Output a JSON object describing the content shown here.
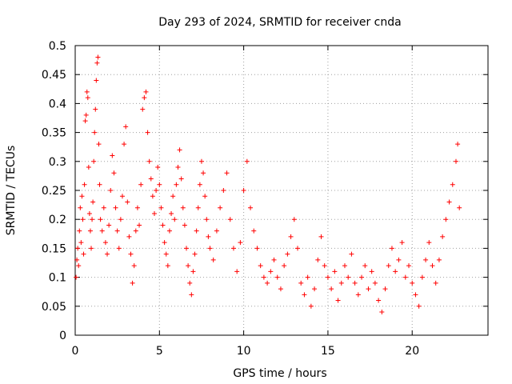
{
  "chart_data": {
    "type": "scatter",
    "title": "Day 293 of 2024, SRMTID for receiver cnda",
    "xlabel": "GPS time / hours",
    "ylabel": "SRMTID / TECUs",
    "xlim": [
      0,
      24.5
    ],
    "ylim": [
      0,
      0.5
    ],
    "x_ticks": [
      0,
      5,
      10,
      15,
      20
    ],
    "x_tick_labels": [
      "0",
      "5",
      "10",
      "15",
      "20"
    ],
    "y_ticks": [
      0,
      0.05,
      0.1,
      0.15,
      0.2,
      0.25,
      0.3,
      0.35,
      0.4,
      0.45,
      0.5
    ],
    "y_tick_labels": [
      "0",
      "0.05",
      "0.1",
      "0.15",
      "0.2",
      "0.25",
      "0.3",
      "0.35",
      "0.4",
      "0.45",
      "0.5"
    ],
    "grid": true,
    "marker": "plus",
    "color": "#ff0000",
    "series": [
      {
        "name": "SRMTID",
        "points": [
          [
            0.05,
            0.1
          ],
          [
            0.1,
            0.13
          ],
          [
            0.15,
            0.15
          ],
          [
            0.2,
            0.12
          ],
          [
            0.25,
            0.18
          ],
          [
            0.3,
            0.22
          ],
          [
            0.35,
            0.16
          ],
          [
            0.4,
            0.24
          ],
          [
            0.45,
            0.2
          ],
          [
            0.5,
            0.14
          ],
          [
            0.55,
            0.26
          ],
          [
            0.6,
            0.37
          ],
          [
            0.65,
            0.38
          ],
          [
            0.7,
            0.42
          ],
          [
            0.75,
            0.41
          ],
          [
            0.8,
            0.29
          ],
          [
            0.85,
            0.21
          ],
          [
            0.9,
            0.18
          ],
          [
            0.95,
            0.15
          ],
          [
            1.0,
            0.2
          ],
          [
            1.05,
            0.23
          ],
          [
            1.1,
            0.3
          ],
          [
            1.15,
            0.35
          ],
          [
            1.2,
            0.39
          ],
          [
            1.25,
            0.44
          ],
          [
            1.3,
            0.47
          ],
          [
            1.35,
            0.48
          ],
          [
            1.4,
            0.33
          ],
          [
            1.45,
            0.26
          ],
          [
            1.5,
            0.2
          ],
          [
            1.6,
            0.18
          ],
          [
            1.7,
            0.22
          ],
          [
            1.8,
            0.16
          ],
          [
            1.9,
            0.14
          ],
          [
            2.0,
            0.19
          ],
          [
            2.1,
            0.25
          ],
          [
            2.2,
            0.31
          ],
          [
            2.3,
            0.28
          ],
          [
            2.4,
            0.22
          ],
          [
            2.5,
            0.18
          ],
          [
            2.6,
            0.15
          ],
          [
            2.7,
            0.2
          ],
          [
            2.8,
            0.24
          ],
          [
            2.9,
            0.33
          ],
          [
            3.0,
            0.36
          ],
          [
            3.1,
            0.23
          ],
          [
            3.2,
            0.17
          ],
          [
            3.3,
            0.14
          ],
          [
            3.4,
            0.09
          ],
          [
            3.5,
            0.12
          ],
          [
            3.6,
            0.18
          ],
          [
            3.7,
            0.22
          ],
          [
            3.8,
            0.19
          ],
          [
            3.9,
            0.26
          ],
          [
            4.0,
            0.39
          ],
          [
            4.1,
            0.41
          ],
          [
            4.2,
            0.42
          ],
          [
            4.3,
            0.35
          ],
          [
            4.4,
            0.3
          ],
          [
            4.5,
            0.27
          ],
          [
            4.6,
            0.24
          ],
          [
            4.7,
            0.21
          ],
          [
            4.8,
            0.25
          ],
          [
            4.9,
            0.29
          ],
          [
            5.0,
            0.26
          ],
          [
            5.1,
            0.22
          ],
          [
            5.2,
            0.19
          ],
          [
            5.3,
            0.16
          ],
          [
            5.4,
            0.14
          ],
          [
            5.5,
            0.12
          ],
          [
            5.6,
            0.18
          ],
          [
            5.7,
            0.21
          ],
          [
            5.8,
            0.24
          ],
          [
            5.9,
            0.2
          ],
          [
            6.0,
            0.26
          ],
          [
            6.1,
            0.29
          ],
          [
            6.2,
            0.32
          ],
          [
            6.3,
            0.27
          ],
          [
            6.4,
            0.22
          ],
          [
            6.5,
            0.19
          ],
          [
            6.6,
            0.15
          ],
          [
            6.7,
            0.12
          ],
          [
            6.8,
            0.09
          ],
          [
            6.9,
            0.07
          ],
          [
            7.0,
            0.11
          ],
          [
            7.1,
            0.14
          ],
          [
            7.2,
            0.18
          ],
          [
            7.3,
            0.22
          ],
          [
            7.4,
            0.26
          ],
          [
            7.5,
            0.3
          ],
          [
            7.6,
            0.28
          ],
          [
            7.7,
            0.24
          ],
          [
            7.8,
            0.2
          ],
          [
            7.9,
            0.17
          ],
          [
            8.0,
            0.15
          ],
          [
            8.2,
            0.13
          ],
          [
            8.4,
            0.18
          ],
          [
            8.6,
            0.22
          ],
          [
            8.8,
            0.25
          ],
          [
            9.0,
            0.28
          ],
          [
            9.2,
            0.2
          ],
          [
            9.4,
            0.15
          ],
          [
            9.6,
            0.11
          ],
          [
            9.8,
            0.16
          ],
          [
            10.0,
            0.25
          ],
          [
            10.2,
            0.3
          ],
          [
            10.4,
            0.22
          ],
          [
            10.6,
            0.18
          ],
          [
            10.8,
            0.15
          ],
          [
            11.0,
            0.12
          ],
          [
            11.2,
            0.1
          ],
          [
            11.4,
            0.09
          ],
          [
            11.6,
            0.11
          ],
          [
            11.8,
            0.13
          ],
          [
            12.0,
            0.1
          ],
          [
            12.2,
            0.08
          ],
          [
            12.4,
            0.12
          ],
          [
            12.6,
            0.14
          ],
          [
            12.8,
            0.17
          ],
          [
            13.0,
            0.2
          ],
          [
            13.2,
            0.15
          ],
          [
            13.4,
            0.09
          ],
          [
            13.6,
            0.07
          ],
          [
            13.8,
            0.1
          ],
          [
            14.0,
            0.05
          ],
          [
            14.2,
            0.08
          ],
          [
            14.4,
            0.13
          ],
          [
            14.6,
            0.17
          ],
          [
            14.8,
            0.12
          ],
          [
            15.0,
            0.1
          ],
          [
            15.2,
            0.08
          ],
          [
            15.4,
            0.11
          ],
          [
            15.6,
            0.06
          ],
          [
            15.8,
            0.09
          ],
          [
            16.0,
            0.12
          ],
          [
            16.2,
            0.1
          ],
          [
            16.4,
            0.14
          ],
          [
            16.6,
            0.09
          ],
          [
            16.8,
            0.07
          ],
          [
            17.0,
            0.1
          ],
          [
            17.2,
            0.12
          ],
          [
            17.4,
            0.08
          ],
          [
            17.6,
            0.11
          ],
          [
            17.8,
            0.09
          ],
          [
            18.0,
            0.06
          ],
          [
            18.2,
            0.04
          ],
          [
            18.4,
            0.08
          ],
          [
            18.6,
            0.12
          ],
          [
            18.8,
            0.15
          ],
          [
            19.0,
            0.11
          ],
          [
            19.2,
            0.13
          ],
          [
            19.4,
            0.16
          ],
          [
            19.6,
            0.1
          ],
          [
            19.8,
            0.12
          ],
          [
            20.0,
            0.09
          ],
          [
            20.2,
            0.07
          ],
          [
            20.4,
            0.05
          ],
          [
            20.6,
            0.1
          ],
          [
            20.8,
            0.13
          ],
          [
            21.0,
            0.16
          ],
          [
            21.2,
            0.12
          ],
          [
            21.4,
            0.09
          ],
          [
            21.6,
            0.13
          ],
          [
            21.8,
            0.17
          ],
          [
            22.0,
            0.2
          ],
          [
            22.2,
            0.23
          ],
          [
            22.4,
            0.26
          ],
          [
            22.6,
            0.3
          ],
          [
            22.7,
            0.33
          ],
          [
            22.8,
            0.22
          ]
        ]
      }
    ]
  }
}
